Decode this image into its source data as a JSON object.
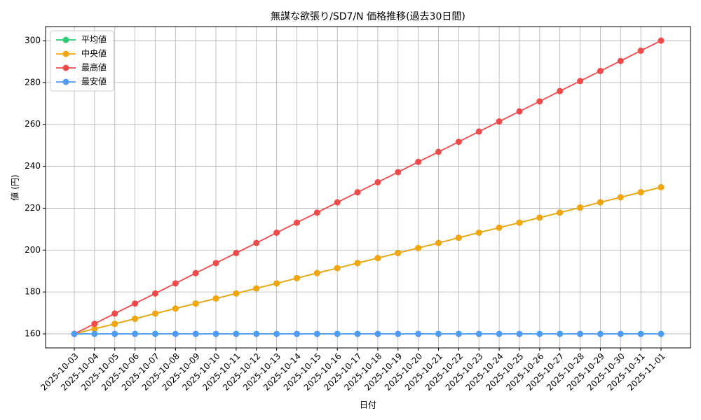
{
  "chart_data": {
    "type": "line",
    "title": "無謀な欲張り/SD7/N 価格推移(過去30日間)",
    "x_label": "日付",
    "y_label": "値 (円)",
    "categories": [
      "2025-10-03",
      "2025-10-04",
      "2025-10-05",
      "2025-10-06",
      "2025-10-07",
      "2025-10-08",
      "2025-10-09",
      "2025-10-10",
      "2025-10-11",
      "2025-10-12",
      "2025-10-13",
      "2025-10-14",
      "2025-10-15",
      "2025-10-16",
      "2025-10-17",
      "2025-10-18",
      "2025-10-19",
      "2025-10-20",
      "2025-10-21",
      "2025-10-22",
      "2025-10-23",
      "2025-10-24",
      "2025-10-25",
      "2025-10-26",
      "2025-10-27",
      "2025-10-28",
      "2025-10-29",
      "2025-10-30",
      "2025-10-31",
      "2025-11-01"
    ],
    "series": [
      {
        "name": "平均値",
        "color": "#2ecc71",
        "values": [
          160,
          162.4,
          164.8,
          167.2,
          169.7,
          172.1,
          174.5,
          176.9,
          179.3,
          181.7,
          184.1,
          186.6,
          189.0,
          191.4,
          193.8,
          196.2,
          198.6,
          201.0,
          203.4,
          205.9,
          208.3,
          210.7,
          213.1,
          215.5,
          217.9,
          220.3,
          222.8,
          225.2,
          227.6,
          230
        ]
      },
      {
        "name": "中央値",
        "color": "#f5a50c",
        "values": [
          160,
          162.4,
          164.8,
          167.2,
          169.7,
          172.1,
          174.5,
          176.9,
          179.3,
          181.7,
          184.1,
          186.6,
          189.0,
          191.4,
          193.8,
          196.2,
          198.6,
          201.0,
          203.4,
          205.9,
          208.3,
          210.7,
          213.1,
          215.5,
          217.9,
          220.3,
          222.8,
          225.2,
          227.6,
          230
        ]
      },
      {
        "name": "最高値",
        "color": "#ef4b4b",
        "values": [
          160,
          164.8,
          169.7,
          174.5,
          179.3,
          184.1,
          189.0,
          193.8,
          198.6,
          203.4,
          208.3,
          213.1,
          217.9,
          222.8,
          227.6,
          232.4,
          237.2,
          242.1,
          246.9,
          251.7,
          256.6,
          261.4,
          266.2,
          271.0,
          275.9,
          280.7,
          285.5,
          290.3,
          295.2,
          300
        ]
      },
      {
        "name": "最安値",
        "color": "#4f9cf5",
        "values": [
          160,
          160,
          160,
          160,
          160,
          160,
          160,
          160,
          160,
          160,
          160,
          160,
          160,
          160,
          160,
          160,
          160,
          160,
          160,
          160,
          160,
          160,
          160,
          160,
          160,
          160,
          160,
          160,
          160,
          160
        ]
      }
    ],
    "ylim": [
      153.3,
      306.7
    ],
    "yticks": [
      160,
      180,
      200,
      220,
      240,
      260,
      280,
      300
    ],
    "grid": true,
    "legend": "upper-left"
  }
}
